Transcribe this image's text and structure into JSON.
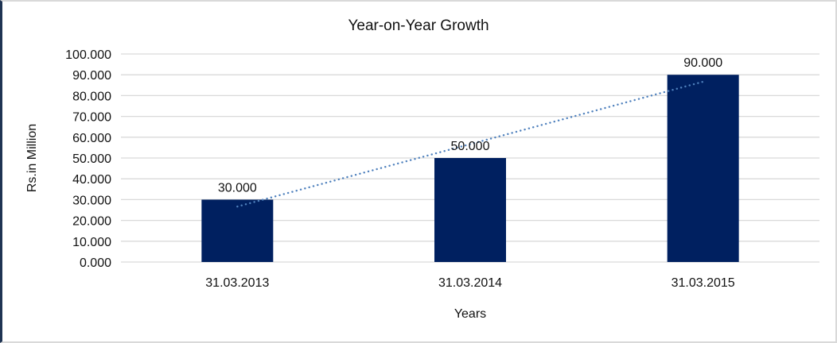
{
  "window": {
    "background": "#ffffff",
    "border_left_color": "#1f3453",
    "border_color": "#d9d9d9"
  },
  "chart_data": {
    "type": "bar",
    "title": "Year-on-Year Growth",
    "xlabel": "Years",
    "ylabel": "Rs.in Million",
    "categories": [
      "31.03.2013",
      "31.03.2014",
      "31.03.2015"
    ],
    "values": [
      30,
      50,
      90
    ],
    "value_labels": [
      "30.000",
      "50.000",
      "90.000"
    ],
    "y_ticks": [
      "0.000",
      "10.000",
      "20.000",
      "30.000",
      "40.000",
      "50.000",
      "60.000",
      "70.000",
      "80.000",
      "90.000",
      "100.000"
    ],
    "ylim": [
      0,
      100
    ],
    "y_tick_step": 10,
    "grid": "horizontal",
    "legend": "none",
    "colors": {
      "bar": "#002060",
      "trendline": "#4f81bd",
      "gridline": "#d9d9d9",
      "text": "#111111"
    },
    "trendline": {
      "type": "linear",
      "style": "dotted"
    }
  }
}
